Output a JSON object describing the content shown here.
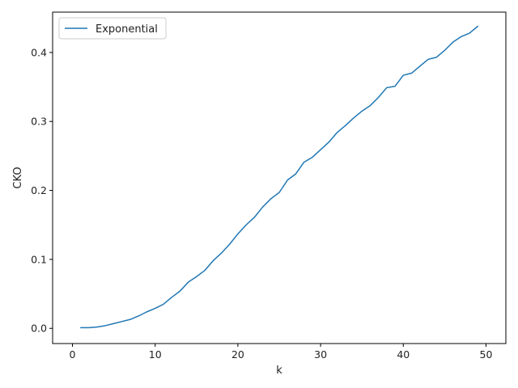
{
  "chart_data": {
    "type": "line",
    "title": "",
    "xlabel": "k",
    "ylabel": "CKO",
    "xlim": [
      -2.4,
      52.4
    ],
    "ylim": [
      -0.022,
      0.4585
    ],
    "xticks": [
      0,
      10,
      20,
      30,
      40,
      50
    ],
    "yticks": [
      0.0,
      0.1,
      0.2,
      0.3,
      0.4
    ],
    "xtick_labels": [
      "0",
      "10",
      "20",
      "30",
      "40",
      "50"
    ],
    "ytick_labels": [
      "0.0",
      "0.1",
      "0.2",
      "0.3",
      "0.4"
    ],
    "grid": false,
    "legend": "top-left",
    "series": [
      {
        "name": "Exponential",
        "color": "#1f77b4",
        "x": [
          1,
          2,
          3,
          4,
          5,
          6,
          7,
          8,
          9,
          10,
          11,
          12,
          13,
          14,
          15,
          16,
          17,
          18,
          19,
          20,
          21,
          22,
          23,
          24,
          25,
          26,
          27,
          28,
          29,
          30,
          31,
          32,
          33,
          34,
          35,
          36,
          37,
          38,
          39,
          40,
          41,
          42,
          43,
          44,
          45,
          46,
          47,
          48,
          49
        ],
        "y": [
          0.001,
          0.001,
          0.002,
          0.004,
          0.007,
          0.01,
          0.013,
          0.018,
          0.024,
          0.029,
          0.035,
          0.045,
          0.054,
          0.067,
          0.075,
          0.084,
          0.098,
          0.109,
          0.122,
          0.137,
          0.15,
          0.161,
          0.176,
          0.188,
          0.197,
          0.215,
          0.224,
          0.241,
          0.248,
          0.259,
          0.27,
          0.284,
          0.294,
          0.305,
          0.315,
          0.323,
          0.335,
          0.349,
          0.351,
          0.367,
          0.37,
          0.38,
          0.39,
          0.393,
          0.403,
          0.415,
          0.423,
          0.428,
          0.438
        ]
      }
    ]
  }
}
